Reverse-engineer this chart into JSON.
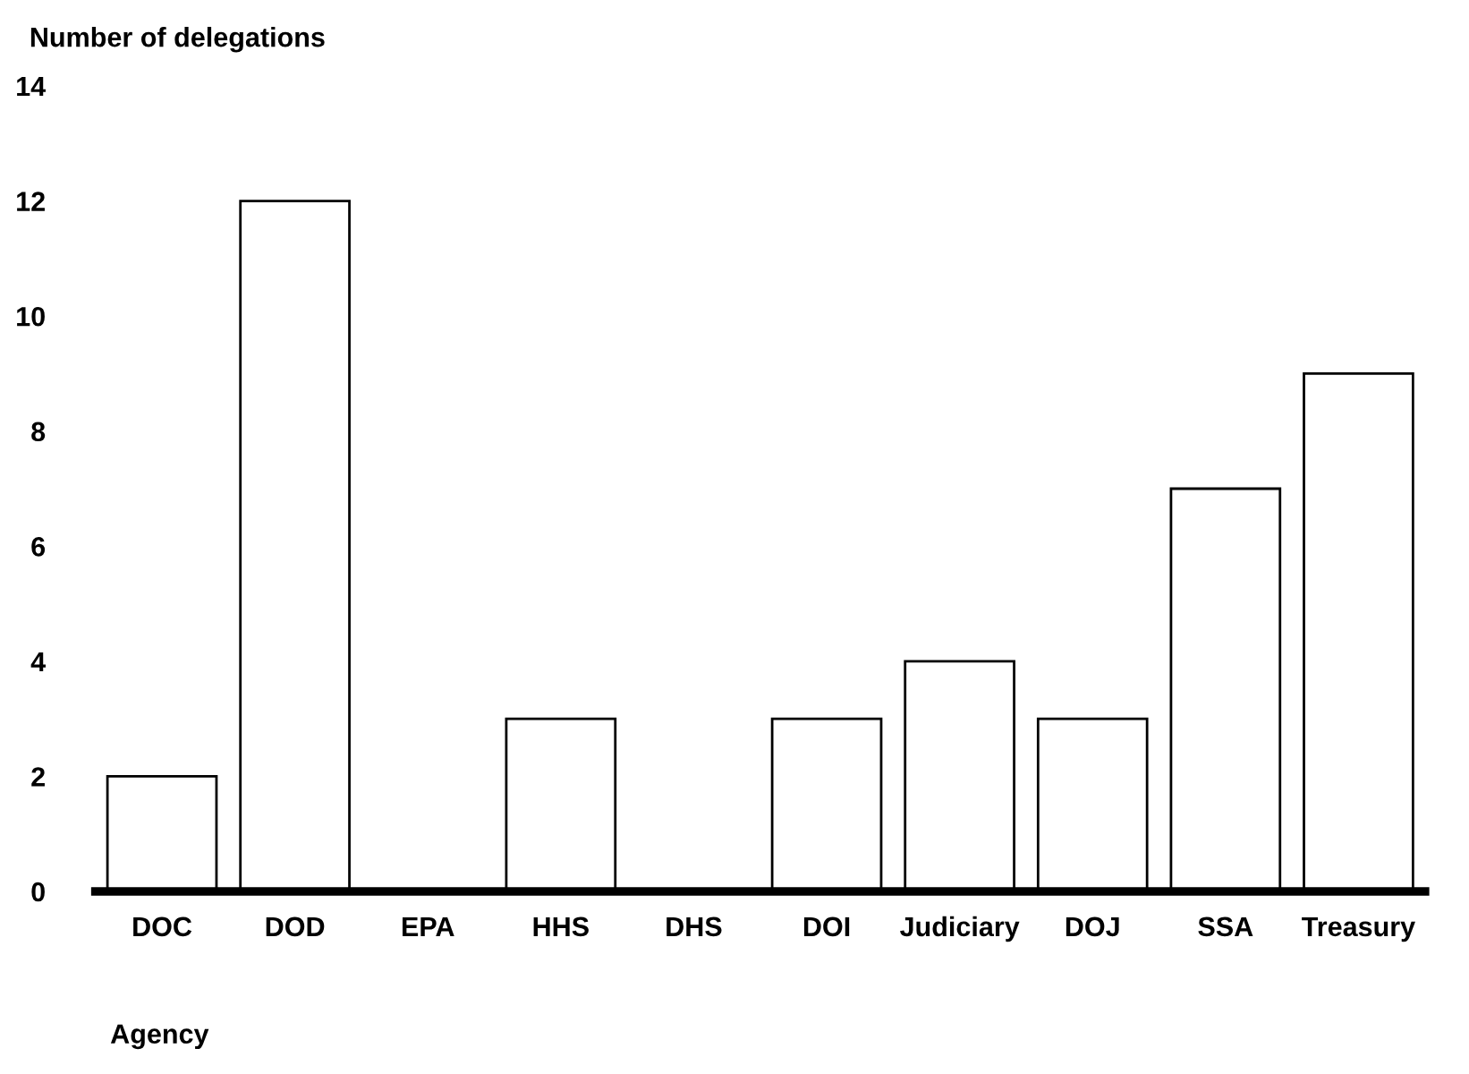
{
  "chart_data": {
    "type": "bar",
    "ylabel": "Number of delegations",
    "xlabel": "Agency",
    "categories": [
      "DOC",
      "DOD",
      "EPA",
      "HHS",
      "DHS",
      "DOI",
      "Judiciary",
      "DOJ",
      "SSA",
      "Treasury"
    ],
    "values": [
      2,
      12,
      0,
      3,
      0,
      3,
      4,
      3,
      7,
      9
    ],
    "color": "#ffffff",
    "ylim": [
      0,
      14
    ],
    "yticks": [
      0,
      2,
      4,
      6,
      8,
      10,
      12,
      14
    ],
    "grid": false,
    "legend": false
  }
}
